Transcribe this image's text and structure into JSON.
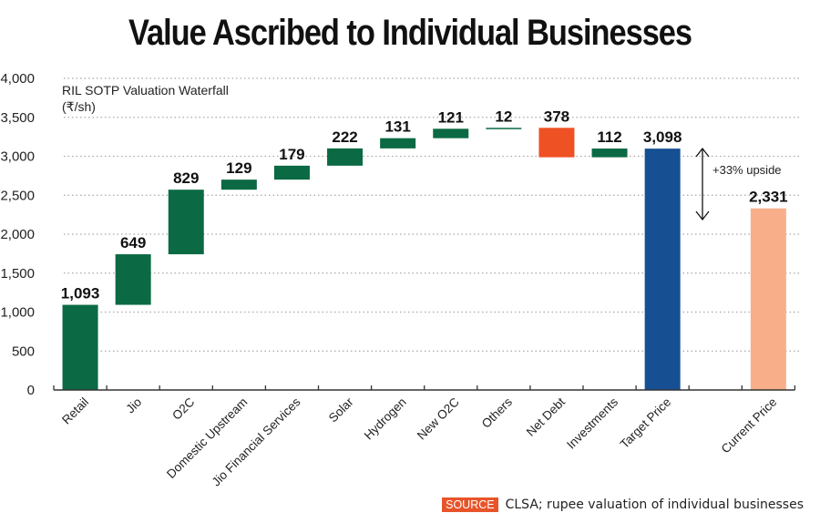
{
  "chart_data": {
    "type": "bar",
    "subtype": "waterfall",
    "title": "Value Ascribed to Individual Businesses",
    "subtitle": "RIL SOTP Valuation Waterfall",
    "unit_label": "(₹/sh)",
    "xlabel": "",
    "ylabel": "",
    "ylim": [
      0,
      4000
    ],
    "yticks": [
      0,
      500,
      1000,
      1500,
      2000,
      2500,
      3000,
      3500,
      4000
    ],
    "ytick_labels": [
      "0",
      "500",
      "1,000",
      "1,500",
      "2,000",
      "2,500",
      "3,000",
      "3,500",
      "4,000"
    ],
    "grid": true,
    "categories": [
      "Retail",
      "Jio",
      "O2C",
      "Domestic Upstream",
      "Jio Financial Services",
      "Solar",
      "Hydrogen",
      "New O2C",
      "Others",
      "Net Debt",
      "Investments",
      "Target Price",
      "",
      "Current Price"
    ],
    "bars": [
      {
        "category": "Retail",
        "value": 1093,
        "start": 0,
        "end": 1093,
        "label": "1,093",
        "kind": "increase"
      },
      {
        "category": "Jio",
        "value": 649,
        "start": 1093,
        "end": 1742,
        "label": "649",
        "kind": "increase"
      },
      {
        "category": "O2C",
        "value": 829,
        "start": 1742,
        "end": 2571,
        "label": "829",
        "kind": "increase"
      },
      {
        "category": "Domestic Upstream",
        "value": 129,
        "start": 2571,
        "end": 2700,
        "label": "129",
        "kind": "increase"
      },
      {
        "category": "Jio Financial Services",
        "value": 179,
        "start": 2700,
        "end": 2879,
        "label": "179",
        "kind": "increase"
      },
      {
        "category": "Solar",
        "value": 222,
        "start": 2879,
        "end": 3101,
        "label": "222",
        "kind": "increase"
      },
      {
        "category": "Hydrogen",
        "value": 131,
        "start": 3101,
        "end": 3232,
        "label": "131",
        "kind": "increase"
      },
      {
        "category": "New O2C",
        "value": 121,
        "start": 3232,
        "end": 3353,
        "label": "121",
        "kind": "increase"
      },
      {
        "category": "Others",
        "value": 12,
        "start": 3353,
        "end": 3365,
        "label": "12",
        "kind": "increase"
      },
      {
        "category": "Net Debt",
        "value": -378,
        "start": 3365,
        "end": 2987,
        "label": "378",
        "kind": "decrease"
      },
      {
        "category": "Investments",
        "value": 112,
        "start": 2987,
        "end": 3099,
        "label": "112",
        "kind": "increase"
      },
      {
        "category": "Target Price",
        "value": 3098,
        "start": 0,
        "end": 3098,
        "label": "3,098",
        "kind": "total"
      },
      {
        "category": "Current Price",
        "value": 2331,
        "start": 0,
        "end": 2331,
        "label": "2,331",
        "kind": "current"
      }
    ],
    "colors": {
      "increase": "#0b6a43",
      "decrease": "#ee5124",
      "total": "#164f92",
      "current": "#f9ae8a",
      "grid": "#a8a8a8",
      "axis": "#333333"
    },
    "annotation": {
      "text": "+33% upside",
      "from_value": 3098,
      "to_value": 2331
    }
  },
  "source": {
    "badge": "SOURCE",
    "text": "CLSA; rupee valuation of individual businesses"
  }
}
